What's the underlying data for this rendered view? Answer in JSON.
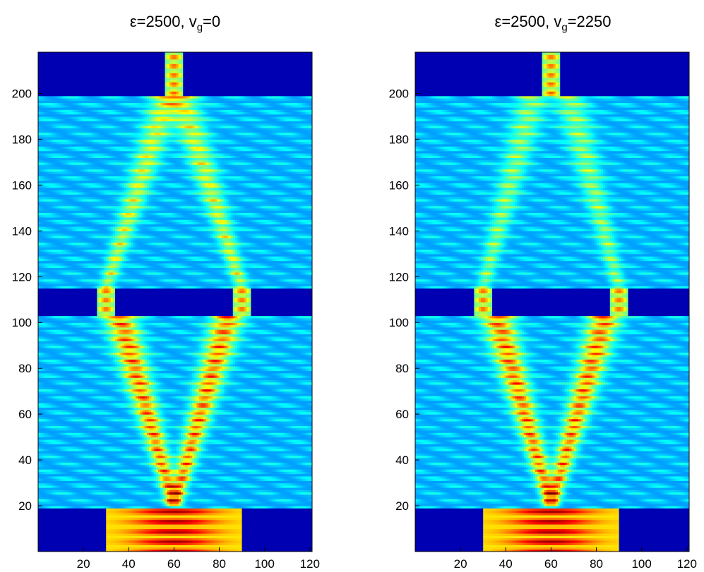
{
  "chart_data": [
    {
      "type": "heatmap",
      "title_prefix": "ε=2500, v",
      "title_sub": "g",
      "title_suffix": "=0",
      "x_ticks": [
        20,
        40,
        60,
        80,
        100,
        120
      ],
      "y_ticks": [
        20,
        40,
        60,
        80,
        100,
        120,
        140,
        160,
        180,
        200
      ],
      "xlim": [
        0,
        121
      ],
      "ylim": [
        0,
        218
      ],
      "colormap": "jet",
      "barriers": [
        {
          "y": [
            0,
            19
          ],
          "openings": [
            [
              30,
              90
            ]
          ]
        },
        {
          "y": [
            103,
            115
          ],
          "openings": [
            [
              26,
              34
            ],
            [
              86,
              94
            ]
          ]
        },
        {
          "y": [
            199,
            218
          ],
          "openings": [
            [
              56,
              64
            ]
          ]
        }
      ],
      "beams": [
        {
          "from": [
            60,
            20
          ],
          "to": [
            36,
            103
          ],
          "strength": 1.0
        },
        {
          "from": [
            60,
            20
          ],
          "to": [
            84,
            103
          ],
          "strength": 1.0
        },
        {
          "from": [
            30,
            115
          ],
          "to": [
            57,
            199
          ],
          "strength": 0.6
        },
        {
          "from": [
            90,
            115
          ],
          "to": [
            63,
            199
          ],
          "strength": 0.6
        }
      ]
    },
    {
      "type": "heatmap",
      "title_prefix": "ε=2500, v",
      "title_sub": "g",
      "title_suffix": "=2250",
      "x_ticks": [
        20,
        40,
        60,
        80,
        100,
        120
      ],
      "y_ticks": [
        20,
        40,
        60,
        80,
        100,
        120,
        140,
        160,
        180,
        200
      ],
      "xlim": [
        0,
        121
      ],
      "ylim": [
        0,
        218
      ],
      "colormap": "jet",
      "barriers": [
        {
          "y": [
            0,
            19
          ],
          "openings": [
            [
              30,
              90
            ]
          ]
        },
        {
          "y": [
            103,
            115
          ],
          "openings": [
            [
              26,
              34
            ],
            [
              86,
              94
            ]
          ]
        },
        {
          "y": [
            199,
            218
          ],
          "openings": [
            [
              56,
              64
            ]
          ]
        }
      ],
      "beams": [
        {
          "from": [
            60,
            20
          ],
          "to": [
            36,
            103
          ],
          "strength": 1.0
        },
        {
          "from": [
            60,
            20
          ],
          "to": [
            84,
            103
          ],
          "strength": 1.0
        },
        {
          "from": [
            30,
            115
          ],
          "to": [
            52,
            199
          ],
          "strength": 0.45
        },
        {
          "from": [
            90,
            115
          ],
          "to": [
            68,
            199
          ],
          "strength": 0.45
        }
      ]
    }
  ]
}
